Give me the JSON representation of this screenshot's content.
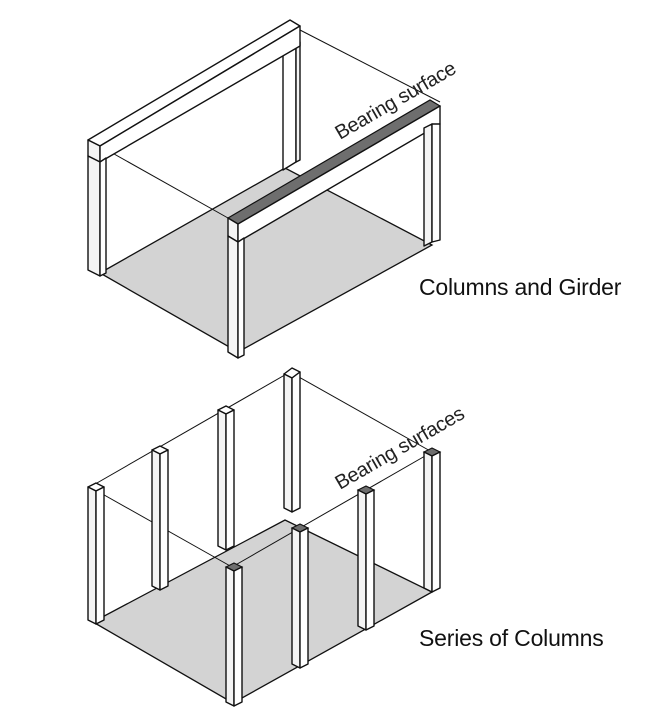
{
  "diagram_top": {
    "caption": "Columns and Girder",
    "annotation": "Bearing surface"
  },
  "diagram_bottom": {
    "caption": "Series of Columns",
    "annotation": "Bearing surfaces"
  },
  "colors": {
    "floor": "#d3d3d3",
    "bearing": "#6e6e6e",
    "line": "#111111"
  }
}
